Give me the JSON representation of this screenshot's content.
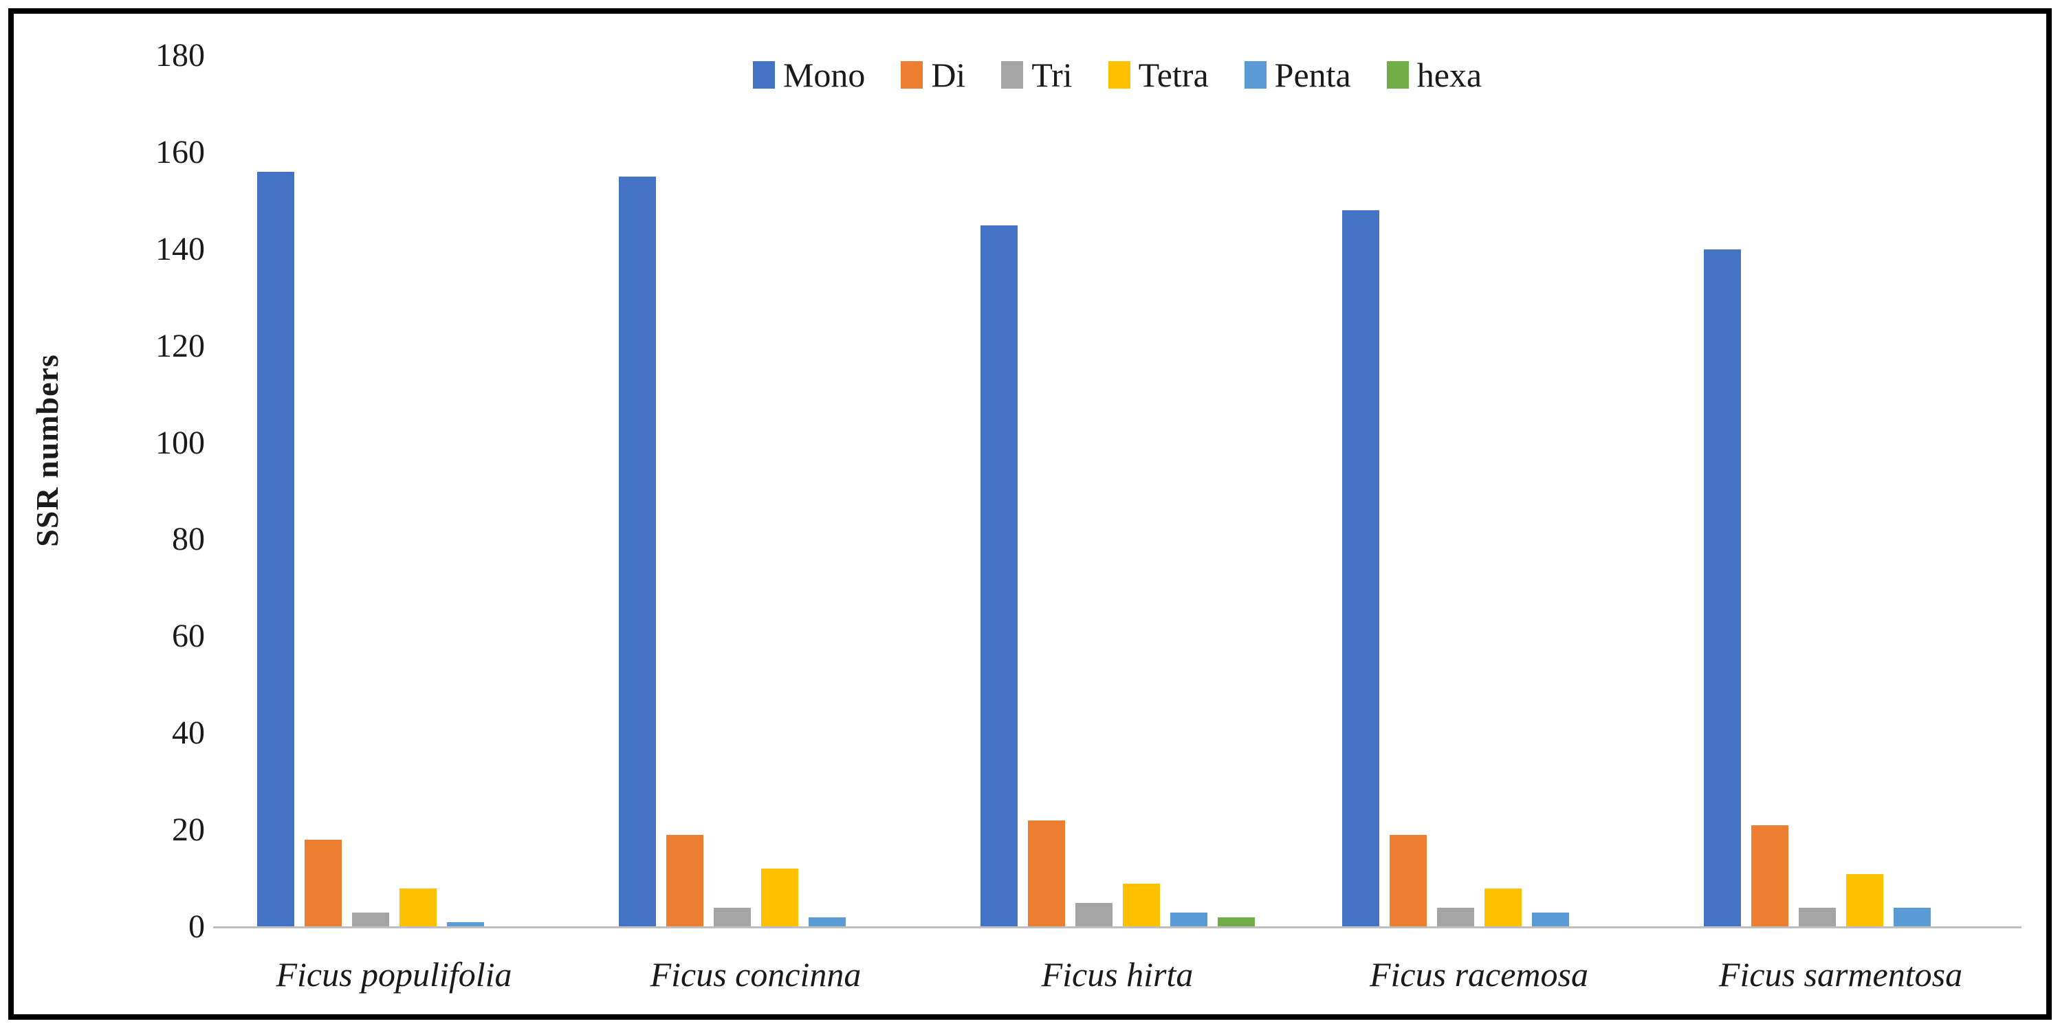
{
  "chart_data": {
    "type": "bar",
    "title": "",
    "xlabel": "",
    "ylabel": "SSR numbers",
    "ylim": [
      0,
      180
    ],
    "yticks": [
      0,
      20,
      40,
      60,
      80,
      100,
      120,
      140,
      160,
      180
    ],
    "grid": false,
    "legend_position": "top-center",
    "categories": [
      "Ficus populifolia",
      "Ficus concinna",
      "Ficus hirta",
      "Ficus racemosa",
      "Ficus sarmentosa"
    ],
    "series": [
      {
        "name": "Mono",
        "color": "#4472C4",
        "values": [
          156,
          155,
          145,
          148,
          140
        ]
      },
      {
        "name": "Di",
        "color": "#ED7D31",
        "values": [
          18,
          19,
          22,
          19,
          21
        ]
      },
      {
        "name": "Tri",
        "color": "#A5A5A5",
        "values": [
          3,
          4,
          5,
          4,
          4
        ]
      },
      {
        "name": "Tetra",
        "color": "#FFC000",
        "values": [
          8,
          12,
          9,
          8,
          11
        ]
      },
      {
        "name": "Penta",
        "color": "#5B9BD5",
        "values": [
          1,
          2,
          3,
          3,
          4
        ]
      },
      {
        "name": "hexa",
        "color": "#70AD47",
        "values": [
          0,
          0,
          2,
          0,
          0
        ]
      }
    ]
  },
  "styles": {
    "axis_line_color": "#BFBFBF",
    "text_color": "#1A1A1A",
    "frame_border_color": "#000000",
    "background_color": "#FFFFFF"
  }
}
